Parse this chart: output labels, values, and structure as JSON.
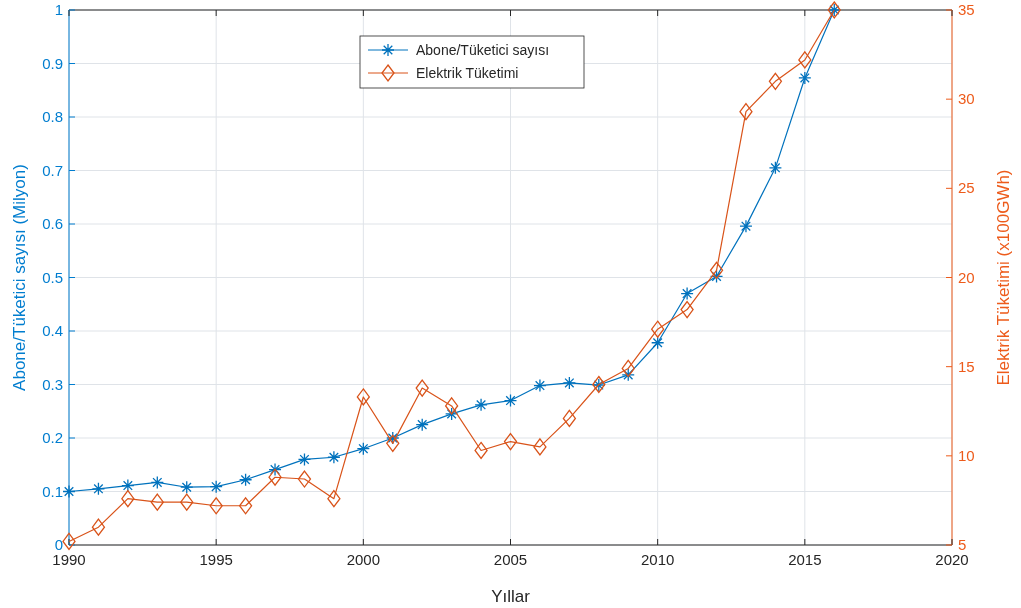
{
  "chart_data": {
    "type": "line",
    "xlabel": "Yıllar",
    "ylabel": "Abone/Tüketici sayısı (Milyon)",
    "y2label": "Elektrik Tüketimi (x100GWh)",
    "x": [
      1990,
      1991,
      1992,
      1993,
      1994,
      1995,
      1996,
      1997,
      1998,
      1999,
      2000,
      2001,
      2002,
      2003,
      2004,
      2005,
      2006,
      2007,
      2008,
      2009,
      2010,
      2011,
      2012,
      2013,
      2014,
      2015,
      2016
    ],
    "series": [
      {
        "name": "Abone/Tüketici sayısı",
        "color": "#0072bd",
        "marker": "cross",
        "values": [
          0.1,
          0.105,
          0.111,
          0.117,
          0.108,
          0.109,
          0.122,
          0.141,
          0.16,
          0.164,
          0.18,
          0.2,
          0.225,
          0.245,
          0.262,
          0.27,
          0.298,
          0.303,
          0.299,
          0.318,
          0.378,
          0.47,
          0.502,
          0.596,
          0.705,
          0.873,
          1.0
        ]
      },
      {
        "name": "Elektrik Tüketimi",
        "color": "#d95319",
        "marker": "diamond",
        "axis": "y2",
        "values": [
          5.2,
          6.0,
          7.6,
          7.4,
          7.4,
          7.2,
          7.2,
          8.8,
          8.7,
          7.6,
          13.3,
          10.7,
          13.8,
          12.8,
          10.3,
          10.8,
          10.5,
          12.1,
          14.0,
          14.9,
          17.1,
          18.2,
          20.4,
          29.3,
          31.0,
          32.2,
          35.0
        ]
      }
    ],
    "xlim": [
      1990,
      2020
    ],
    "xticks": [
      1990,
      1995,
      2000,
      2005,
      2010,
      2015,
      2020
    ],
    "ylim": [
      0,
      1
    ],
    "yticks": [
      0,
      0.1,
      0.2,
      0.3,
      0.4,
      0.5,
      0.6,
      0.7,
      0.8,
      0.9,
      1
    ],
    "y2lim": [
      5,
      35
    ],
    "y2ticks": [
      5,
      10,
      15,
      20,
      25,
      30,
      35
    ],
    "grid": true,
    "legend": "top"
  }
}
